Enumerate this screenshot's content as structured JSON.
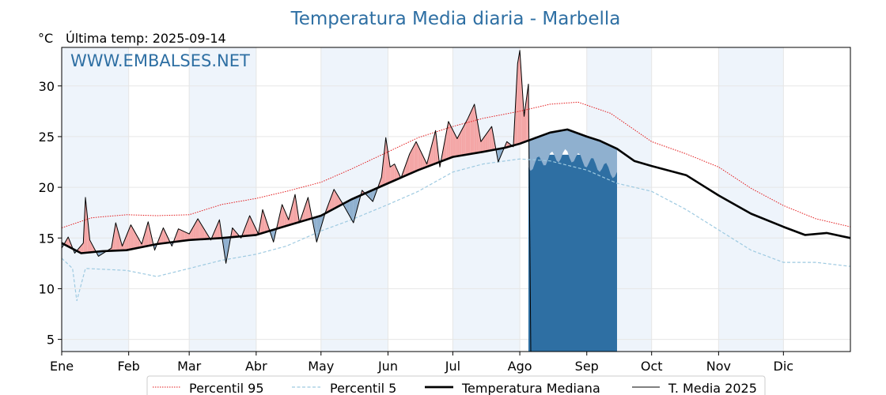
{
  "chart_data": {
    "type": "line",
    "title": "Temperatura Media diaria - Marbella",
    "unit_label": "°C",
    "subtitle": "Última temp: 2025-09-14",
    "watermark": "WWW.EMBALSES.NET",
    "ylim": [
      3.8,
      33.8
    ],
    "yticks": [
      5,
      10,
      15,
      20,
      25,
      30
    ],
    "xlim": [
      1,
      366
    ],
    "month_ticks": [
      {
        "day": 1,
        "label": "Ene"
      },
      {
        "day": 32,
        "label": "Feb"
      },
      {
        "day": 60,
        "label": "Mar"
      },
      {
        "day": 91,
        "label": "Abr"
      },
      {
        "day": 121,
        "label": "May"
      },
      {
        "day": 152,
        "label": "Jun"
      },
      {
        "day": 182,
        "label": "Jul"
      },
      {
        "day": 213,
        "label": "Ago"
      },
      {
        "day": 244,
        "label": "Sep"
      },
      {
        "day": 274,
        "label": "Oct"
      },
      {
        "day": 305,
        "label": "Nov"
      },
      {
        "day": 335,
        "label": "Dic"
      }
    ],
    "grid": true,
    "legend_position": "bottom",
    "colors": {
      "p95": "#e31a1c",
      "p5": "#9ecae1",
      "median": "#000000",
      "current": "#000000",
      "above_fill": "#f4a6a6",
      "below_fill": "#8fb0cf",
      "band_shade": "#eef4fb",
      "gap_fill": "#2e6fa3",
      "title": "#2e6fa3"
    },
    "series": [
      {
        "name": "Percentil 95",
        "style": "dotted-red",
        "points": [
          [
            1,
            16.0
          ],
          [
            15,
            17.0
          ],
          [
            31,
            17.3
          ],
          [
            45,
            17.2
          ],
          [
            60,
            17.3
          ],
          [
            75,
            18.3
          ],
          [
            91,
            18.9
          ],
          [
            105,
            19.6
          ],
          [
            121,
            20.5
          ],
          [
            135,
            21.8
          ],
          [
            152,
            23.5
          ],
          [
            166,
            24.9
          ],
          [
            182,
            26.0
          ],
          [
            196,
            26.8
          ],
          [
            213,
            27.5
          ],
          [
            227,
            28.2
          ],
          [
            240,
            28.4
          ],
          [
            255,
            27.3
          ],
          [
            274,
            24.5
          ],
          [
            290,
            23.3
          ],
          [
            305,
            22.0
          ],
          [
            320,
            19.9
          ],
          [
            335,
            18.2
          ],
          [
            350,
            16.9
          ],
          [
            366,
            16.1
          ]
        ]
      },
      {
        "name": "Percentil 5",
        "style": "dashed-lightblue",
        "points": [
          [
            1,
            13.0
          ],
          [
            6,
            12.0
          ],
          [
            8,
            8.8
          ],
          [
            12,
            12.0
          ],
          [
            31,
            11.8
          ],
          [
            45,
            11.2
          ],
          [
            60,
            12.0
          ],
          [
            75,
            12.8
          ],
          [
            91,
            13.4
          ],
          [
            105,
            14.2
          ],
          [
            121,
            15.7
          ],
          [
            135,
            16.8
          ],
          [
            152,
            18.3
          ],
          [
            166,
            19.6
          ],
          [
            182,
            21.5
          ],
          [
            196,
            22.3
          ],
          [
            213,
            22.8
          ],
          [
            227,
            22.6
          ],
          [
            244,
            21.7
          ],
          [
            258,
            20.4
          ],
          [
            274,
            19.6
          ],
          [
            290,
            17.8
          ],
          [
            305,
            15.8
          ],
          [
            320,
            13.8
          ],
          [
            335,
            12.6
          ],
          [
            350,
            12.6
          ],
          [
            366,
            12.2
          ]
        ]
      },
      {
        "name": "Temperatura Mediana",
        "style": "thick-black",
        "points": [
          [
            1,
            14.5
          ],
          [
            10,
            13.5
          ],
          [
            20,
            13.7
          ],
          [
            31,
            13.8
          ],
          [
            45,
            14.4
          ],
          [
            60,
            14.8
          ],
          [
            75,
            15.0
          ],
          [
            91,
            15.3
          ],
          [
            105,
            16.2
          ],
          [
            121,
            17.2
          ],
          [
            135,
            18.8
          ],
          [
            152,
            20.4
          ],
          [
            166,
            21.7
          ],
          [
            182,
            23.0
          ],
          [
            196,
            23.5
          ],
          [
            206,
            23.9
          ],
          [
            213,
            24.3
          ],
          [
            227,
            25.4
          ],
          [
            235,
            25.7
          ],
          [
            244,
            25.0
          ],
          [
            250,
            24.6
          ],
          [
            258,
            23.8
          ],
          [
            266,
            22.6
          ],
          [
            274,
            22.1
          ],
          [
            290,
            21.2
          ],
          [
            305,
            19.2
          ],
          [
            320,
            17.4
          ],
          [
            335,
            16.1
          ],
          [
            345,
            15.3
          ],
          [
            355,
            15.5
          ],
          [
            366,
            15.0
          ]
        ]
      },
      {
        "name": "T. Media 2025",
        "style": "thin-black",
        "points": [
          [
            1,
            14.0
          ],
          [
            4,
            15.1
          ],
          [
            7,
            13.5
          ],
          [
            11,
            14.5
          ],
          [
            12,
            19.0
          ],
          [
            14,
            14.8
          ],
          [
            18,
            13.2
          ],
          [
            24,
            14.0
          ],
          [
            26,
            16.5
          ],
          [
            29,
            14.2
          ],
          [
            33,
            16.3
          ],
          [
            38,
            14.4
          ],
          [
            41,
            16.6
          ],
          [
            44,
            13.8
          ],
          [
            48,
            16.0
          ],
          [
            52,
            14.2
          ],
          [
            55,
            15.9
          ],
          [
            60,
            15.4
          ],
          [
            64,
            16.9
          ],
          [
            70,
            14.8
          ],
          [
            74,
            16.8
          ],
          [
            77,
            12.5
          ],
          [
            80,
            16.0
          ],
          [
            84,
            15.0
          ],
          [
            88,
            17.2
          ],
          [
            92,
            15.4
          ],
          [
            94,
            17.8
          ],
          [
            99,
            14.6
          ],
          [
            103,
            18.3
          ],
          [
            106,
            16.8
          ],
          [
            109,
            19.3
          ],
          [
            111,
            16.5
          ],
          [
            115,
            19.0
          ],
          [
            119,
            14.6
          ],
          [
            123,
            17.5
          ],
          [
            127,
            19.8
          ],
          [
            131,
            18.4
          ],
          [
            136,
            16.5
          ],
          [
            140,
            19.7
          ],
          [
            145,
            18.6
          ],
          [
            149,
            21.0
          ],
          [
            151,
            24.9
          ],
          [
            153,
            22.0
          ],
          [
            155,
            22.3
          ],
          [
            158,
            20.9
          ],
          [
            162,
            23.3
          ],
          [
            165,
            24.5
          ],
          [
            170,
            22.3
          ],
          [
            174,
            25.6
          ],
          [
            176,
            22.0
          ],
          [
            180,
            26.5
          ],
          [
            184,
            24.8
          ],
          [
            189,
            26.8
          ],
          [
            192,
            28.2
          ],
          [
            195,
            24.5
          ],
          [
            200,
            26.0
          ],
          [
            203,
            22.5
          ],
          [
            207,
            24.5
          ],
          [
            210,
            24.0
          ],
          [
            212,
            32.2
          ],
          [
            213,
            33.5
          ],
          [
            215,
            27.0
          ],
          [
            217,
            30.2
          ]
        ]
      }
    ],
    "data_gap": {
      "from_day": 217,
      "to_day": 258,
      "note_color": "gap_fill"
    }
  },
  "legend": {
    "p95_label": "Percentil 95",
    "p5_label": "Percentil 5",
    "median_label": "Temperatura Mediana",
    "current_label": "T. Media 2025"
  }
}
